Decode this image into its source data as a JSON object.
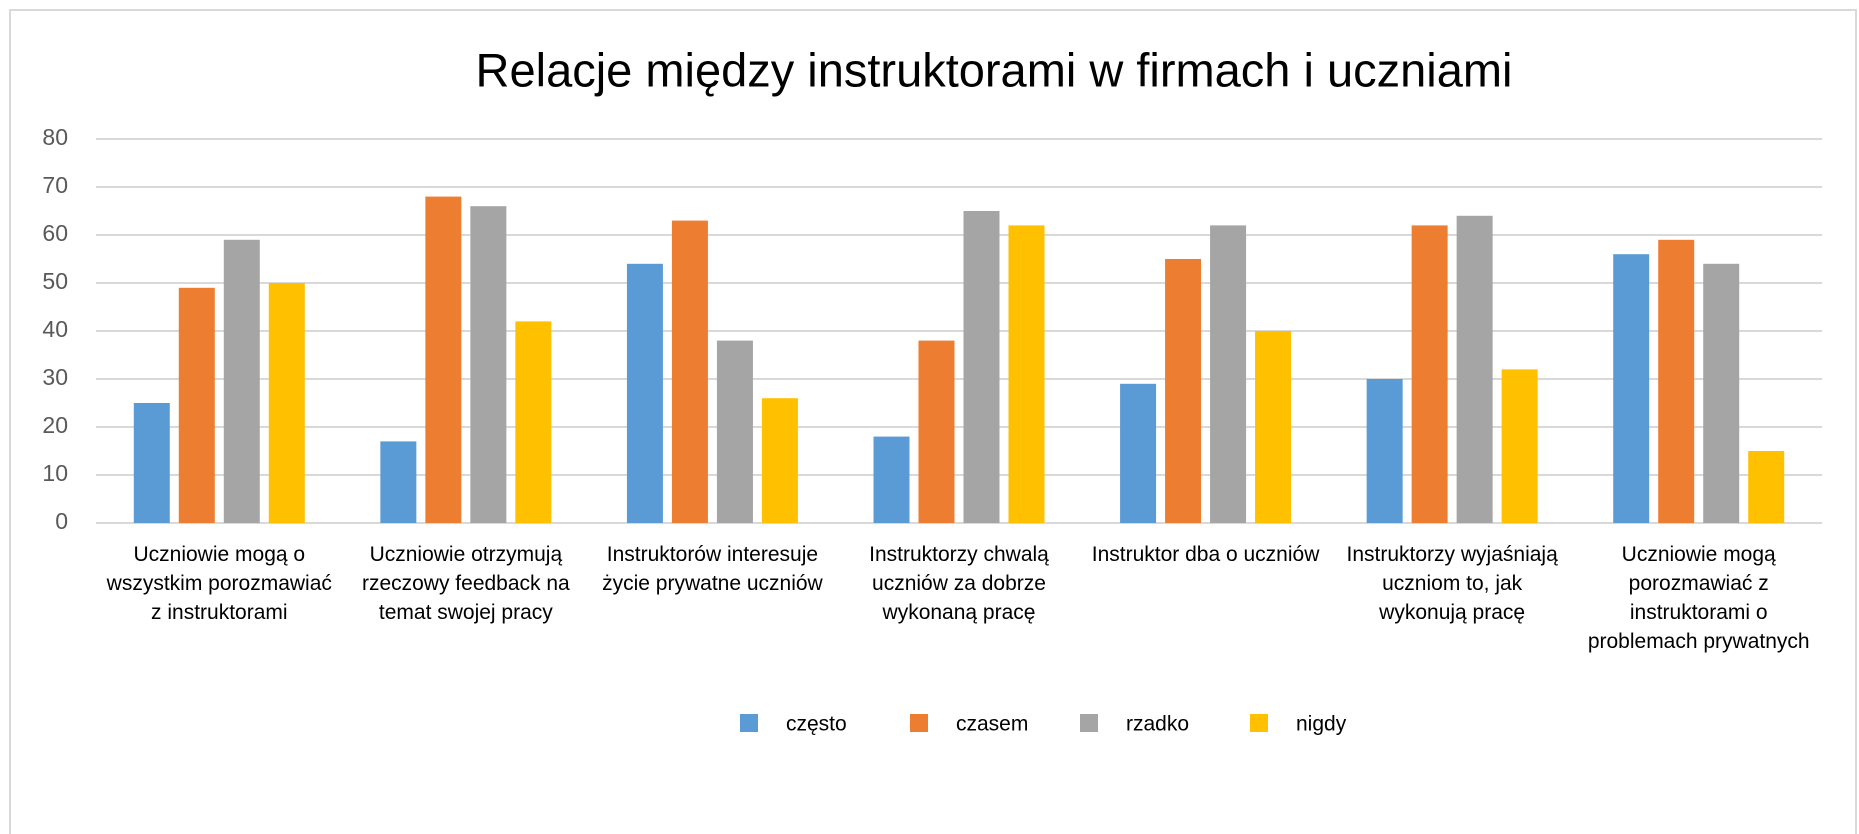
{
  "chart_data": {
    "type": "bar",
    "title": "Relacje między instruktorami w firmach i uczniami",
    "categories": [
      "Uczniowie mogą o wszystkim porozmawiać z instruktorami",
      "Uczniowie otrzymują rzeczowy feedback na temat swojej pracy",
      "Instruktorów interesuje życie prywatne uczniów",
      "Instruktorzy chwalą uczniów za dobrze wykonaną pracę",
      "Instruktor dba o uczniów",
      "Instruktorzy wyjaśniają uczniom to, jak wykonują pracę",
      "Uczniowie mogą porozmawiać z instruktorami o problemach prywatnych"
    ],
    "series": [
      {
        "name": "często",
        "color": "#5b9bd5",
        "values": [
          25,
          17,
          54,
          18,
          29,
          30,
          56
        ]
      },
      {
        "name": "czasem",
        "color": "#ed7d31",
        "values": [
          49,
          68,
          63,
          38,
          55,
          62,
          59
        ]
      },
      {
        "name": "rzadko",
        "color": "#a5a5a5",
        "values": [
          59,
          66,
          38,
          65,
          62,
          64,
          54
        ]
      },
      {
        "name": "nigdy",
        "color": "#ffc000",
        "values": [
          50,
          42,
          26,
          62,
          40,
          32,
          15
        ]
      }
    ],
    "ylim": [
      0,
      80
    ],
    "yticks": [
      0,
      10,
      20,
      30,
      40,
      50,
      60,
      70,
      80
    ],
    "grid": true,
    "legend": "bottom"
  }
}
